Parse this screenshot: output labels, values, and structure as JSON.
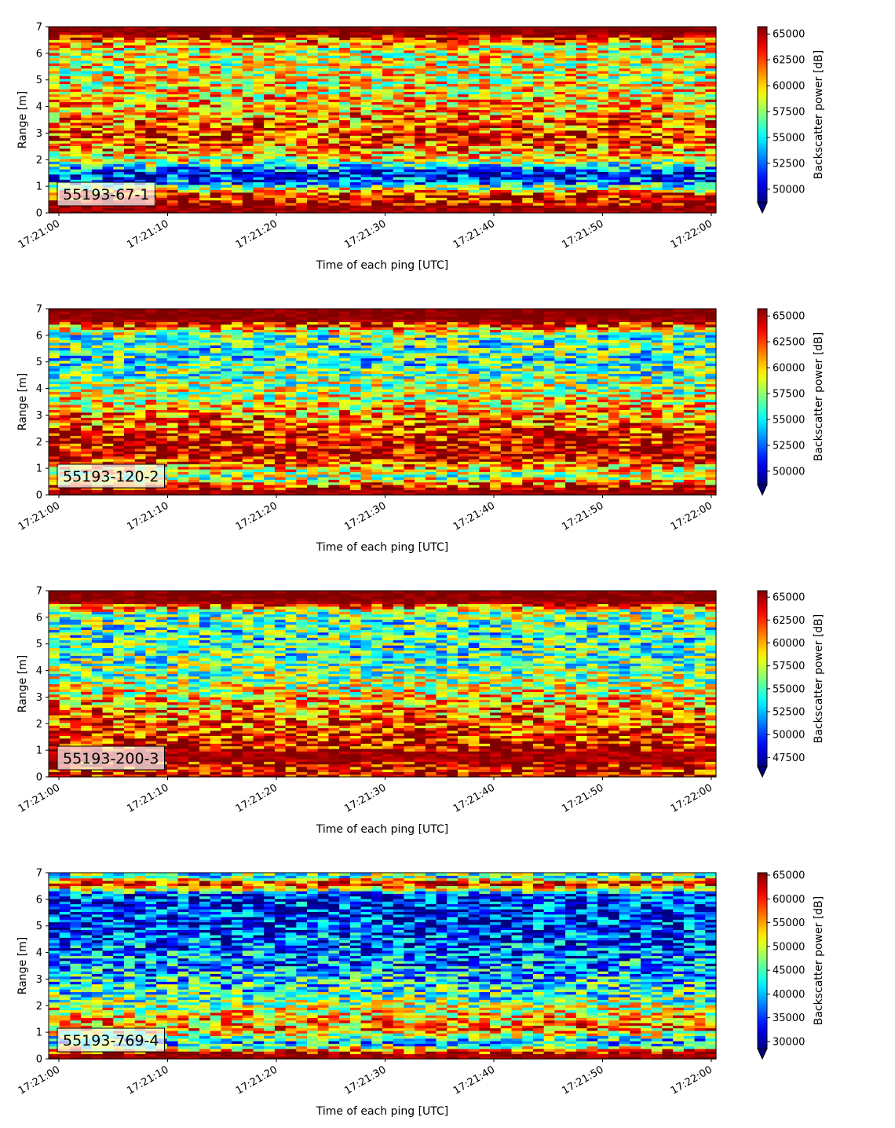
{
  "figure": {
    "colormap": "jet",
    "shared_xlabel": "Time of each ping [UTC]",
    "shared_ylabel": "Range [m]",
    "colorbar_label": "Backscatter power [dB]"
  },
  "chart_data": [
    {
      "type": "heatmap",
      "instrument_label": "55193-67-1",
      "xlabel": "Time of each ping [UTC]",
      "ylabel": "Range [m]",
      "x_ticks": [
        "17:21:00",
        "17:21:10",
        "17:21:20",
        "17:21:30",
        "17:21:40",
        "17:21:50",
        "17:22:00"
      ],
      "y_ticks": [
        0,
        1,
        2,
        3,
        4,
        5,
        6,
        7
      ],
      "ylim": [
        0,
        7
      ],
      "colorbar": {
        "label": "Backscatter power [dB]",
        "ticks": [
          50000,
          52500,
          55000,
          57500,
          60000,
          62500,
          65000
        ],
        "range": [
          48700,
          65700
        ],
        "extend": "min"
      },
      "range_profile": [
        {
          "range_m": 0.2,
          "level": 0.97
        },
        {
          "range_m": 0.7,
          "level": 0.88
        },
        {
          "range_m": 1.15,
          "level": 0.25
        },
        {
          "range_m": 1.5,
          "level": 0.12
        },
        {
          "range_m": 2.0,
          "level": 0.62
        },
        {
          "range_m": 2.8,
          "level": 0.85
        },
        {
          "range_m": 3.8,
          "level": 0.72
        },
        {
          "range_m": 5.0,
          "level": 0.6
        },
        {
          "range_m": 6.2,
          "level": 0.6
        },
        {
          "range_m": 6.8,
          "level": 1.0
        }
      ]
    },
    {
      "type": "heatmap",
      "instrument_label": "55193-120-2",
      "xlabel": "Time of each ping [UTC]",
      "ylabel": "Range [m]",
      "x_ticks": [
        "17:21:00",
        "17:21:10",
        "17:21:20",
        "17:21:30",
        "17:21:40",
        "17:21:50",
        "17:22:00"
      ],
      "y_ticks": [
        0,
        1,
        2,
        3,
        4,
        5,
        6,
        7
      ],
      "ylim": [
        0,
        7
      ],
      "colorbar": {
        "label": "Backscatter power [dB]",
        "ticks": [
          50000,
          52500,
          55000,
          57500,
          60000,
          62500,
          65000
        ],
        "range": [
          48700,
          65700
        ],
        "extend": "min"
      },
      "range_profile": [
        {
          "range_m": 0.2,
          "level": 0.97
        },
        {
          "range_m": 0.7,
          "level": 0.5
        },
        {
          "range_m": 1.5,
          "level": 0.95
        },
        {
          "range_m": 2.2,
          "level": 0.9
        },
        {
          "range_m": 3.0,
          "level": 0.72
        },
        {
          "range_m": 4.0,
          "level": 0.55
        },
        {
          "range_m": 5.0,
          "level": 0.42
        },
        {
          "range_m": 6.0,
          "level": 0.45
        },
        {
          "range_m": 6.6,
          "level": 1.0
        }
      ]
    },
    {
      "type": "heatmap",
      "instrument_label": "55193-200-3",
      "xlabel": "Time of each ping [UTC]",
      "ylabel": "Range [m]",
      "x_ticks": [
        "17:21:00",
        "17:21:10",
        "17:21:20",
        "17:21:30",
        "17:21:40",
        "17:21:50",
        "17:22:00"
      ],
      "y_ticks": [
        0,
        1,
        2,
        3,
        4,
        5,
        6,
        7
      ],
      "ylim": [
        0,
        7
      ],
      "colorbar": {
        "label": "Backscatter power [dB]",
        "ticks": [
          47500,
          50000,
          52500,
          55000,
          57500,
          60000,
          62500,
          65000
        ],
        "range": [
          46500,
          65700
        ],
        "extend": "min"
      },
      "range_profile": [
        {
          "range_m": 0.2,
          "level": 0.9
        },
        {
          "range_m": 0.8,
          "level": 0.97
        },
        {
          "range_m": 1.6,
          "level": 0.85
        },
        {
          "range_m": 2.5,
          "level": 0.75
        },
        {
          "range_m": 3.5,
          "level": 0.55
        },
        {
          "range_m": 4.5,
          "level": 0.45
        },
        {
          "range_m": 5.5,
          "level": 0.42
        },
        {
          "range_m": 6.2,
          "level": 0.5
        },
        {
          "range_m": 6.6,
          "level": 1.0
        }
      ]
    },
    {
      "type": "heatmap",
      "instrument_label": "55193-769-4",
      "xlabel": "Time of each ping [UTC]",
      "ylabel": "Range [m]",
      "x_ticks": [
        "17:21:00",
        "17:21:10",
        "17:21:20",
        "17:21:30",
        "17:21:40",
        "17:21:50",
        "17:22:00"
      ],
      "y_ticks": [
        0,
        1,
        2,
        3,
        4,
        5,
        6,
        7
      ],
      "ylim": [
        0,
        7
      ],
      "colorbar": {
        "label": "Backscatter power [dB]",
        "ticks": [
          30000,
          35000,
          40000,
          45000,
          50000,
          55000,
          60000,
          65000
        ],
        "range": [
          28500,
          65500
        ],
        "extend": "min"
      },
      "range_profile": [
        {
          "range_m": 0.2,
          "level": 0.97
        },
        {
          "range_m": 0.6,
          "level": 0.28
        },
        {
          "range_m": 1.1,
          "level": 0.72
        },
        {
          "range_m": 1.6,
          "level": 0.68
        },
        {
          "range_m": 2.3,
          "level": 0.45
        },
        {
          "range_m": 3.2,
          "level": 0.3
        },
        {
          "range_m": 4.2,
          "level": 0.22
        },
        {
          "range_m": 5.2,
          "level": 0.15
        },
        {
          "range_m": 6.2,
          "level": 0.18
        },
        {
          "range_m": 6.6,
          "level": 0.95
        },
        {
          "range_m": 6.85,
          "level": 0.45
        }
      ]
    }
  ]
}
